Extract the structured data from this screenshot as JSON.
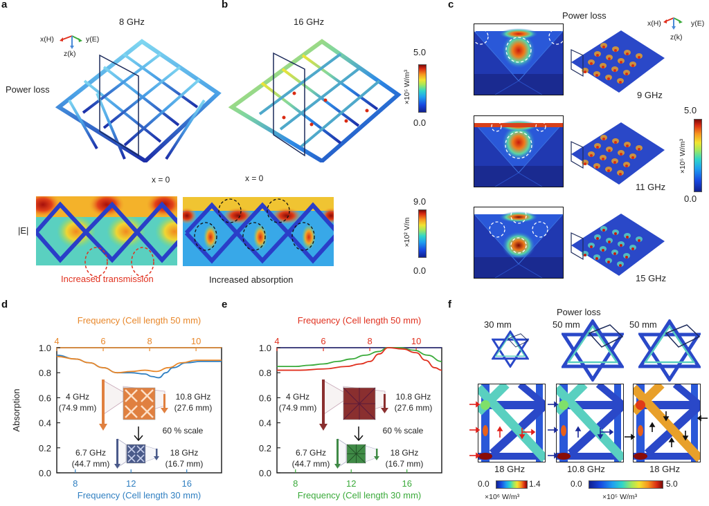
{
  "panels": {
    "a": {
      "letter": "a",
      "frequency": "8 GHz",
      "row_label": "Power loss",
      "axes": {
        "x": "x(H)",
        "y": "y(E)",
        "z": "z(k)"
      },
      "slice_title": "x = 0",
      "field_label": "|E|",
      "annotation": "Increased transmission",
      "annotation_color": "#e0301e"
    },
    "b": {
      "letter": "b",
      "frequency": "16 GHz",
      "slice_title": "x = 0",
      "annotation": "Increased absorption",
      "power_colorbar": {
        "max": "5.0",
        "min": "0.0",
        "unit": "×10⁵ W/m³"
      },
      "field_colorbar": {
        "max": "9.0",
        "min": "0.0",
        "unit": "×10² V/m"
      }
    },
    "c": {
      "letter": "c",
      "title": "Power loss",
      "axes": {
        "x": "x(H)",
        "y": "y(E)",
        "z": "z(k)"
      },
      "rows": [
        {
          "frequency": "9 GHz"
        },
        {
          "frequency": "11 GHz"
        },
        {
          "frequency": "15 GHz"
        }
      ],
      "colorbar": {
        "max": "5.0",
        "min": "0.0",
        "unit": "×10⁵ W/m³"
      }
    },
    "d": {
      "letter": "d"
    },
    "e": {
      "letter": "e"
    },
    "f": {
      "letter": "f",
      "title": "Power loss",
      "cells": [
        {
          "size": "30 mm",
          "frequency": "18 GHz",
          "arrow_color": "#e0201a"
        },
        {
          "size": "50 mm",
          "frequency": "10.8 GHz",
          "arrow_color": "#1a2a9a"
        },
        {
          "size": "50 mm",
          "frequency": "18 GHz",
          "arrow_color": "#111111"
        }
      ],
      "colorbar_left": {
        "min": "0.0",
        "max": "1.4",
        "unit": "×10⁶ W/m³"
      },
      "colorbar_right": {
        "min": "0.0",
        "max": "5.0",
        "unit": "×10⁵ W/m³"
      }
    }
  },
  "chart_data": [
    {
      "id": "d",
      "type": "line",
      "title": "",
      "ylabel": "Absorption",
      "ylim": [
        0.0,
        1.0
      ],
      "yticks": [
        "0.0",
        "0.2",
        "0.4",
        "0.6",
        "0.8",
        "1.0"
      ],
      "top_axis": {
        "label": "Frequency (Cell length 50 mm)",
        "color": "#e8872a",
        "range": [
          4,
          11.1
        ],
        "ticks": [
          "4",
          "6",
          "8",
          "10"
        ]
      },
      "bottom_axis": {
        "label": "Frequency (Cell length 30 mm)",
        "color": "#2f7fc1",
        "range": [
          6.67,
          18.5
        ],
        "ticks": [
          "8",
          "12",
          "16"
        ]
      },
      "series": [
        {
          "name": "Cell length 30 mm",
          "color": "#2f7fc1",
          "axis": "bottom",
          "x": [
            6.67,
            8,
            9,
            10,
            11,
            12,
            13,
            13.5,
            14,
            14.5,
            15,
            16,
            17,
            18.5
          ],
          "y": [
            0.94,
            0.91,
            0.88,
            0.84,
            0.8,
            0.8,
            0.79,
            0.77,
            0.76,
            0.8,
            0.84,
            0.88,
            0.89,
            0.89
          ]
        },
        {
          "name": "Cell length 50 mm",
          "color": "#e8872a",
          "axis": "top",
          "x": [
            4,
            4.8,
            5.4,
            6.0,
            6.6,
            7.2,
            7.8,
            8.3,
            8.8,
            9.4,
            10.0,
            10.6,
            11.1
          ],
          "y": [
            0.93,
            0.91,
            0.88,
            0.84,
            0.8,
            0.81,
            0.82,
            0.81,
            0.84,
            0.88,
            0.9,
            0.9,
            0.9
          ]
        }
      ],
      "inset": {
        "large_color": "#e08040",
        "small_color": "#4a5a8a",
        "left_top": "4 GHz",
        "left_bottom": "(74.9 mm)",
        "right_top": "10.8 GHz",
        "right_bottom": "(27.6 mm)",
        "scale": "60 % scale",
        "small_left_top": "6.7 GHz",
        "small_left_bottom": "(44.7 mm)",
        "small_right_top": "18 GHz",
        "small_right_bottom": "(16.7 mm)"
      }
    },
    {
      "id": "e",
      "type": "line",
      "title": "",
      "ylabel": "",
      "ylim": [
        0.0,
        1.0
      ],
      "yticks": [
        "0.0",
        "0.2",
        "0.4",
        "0.6",
        "0.8",
        "1.0"
      ],
      "top_axis": {
        "label": "Frequency (Cell length 50 mm)",
        "color": "#e0301e",
        "range": [
          4,
          11.1
        ],
        "ticks": [
          "4",
          "6",
          "8",
          "10"
        ]
      },
      "bottom_axis": {
        "label": "Frequency (Cell length 30 mm)",
        "color": "#3aaa3a",
        "range": [
          6.67,
          18.5
        ],
        "ticks": [
          "8",
          "12",
          "16"
        ]
      },
      "series": [
        {
          "name": "Cell length 30 mm",
          "color": "#3aaa3a",
          "axis": "bottom",
          "x": [
            6.67,
            8,
            9,
            10,
            11,
            12,
            13,
            14,
            14.6,
            15.5,
            16.5,
            17.5,
            18.5
          ],
          "y": [
            0.85,
            0.85,
            0.86,
            0.87,
            0.89,
            0.91,
            0.94,
            0.97,
            1.0,
            1.0,
            0.98,
            0.94,
            0.89
          ]
        },
        {
          "name": "Cell length 50 mm",
          "color": "#e0301e",
          "axis": "top",
          "x": [
            4,
            5,
            6,
            7,
            7.6,
            8.0,
            8.4,
            8.8,
            9.4,
            10.0,
            10.4,
            10.8,
            11.1
          ],
          "y": [
            0.82,
            0.82,
            0.83,
            0.85,
            0.87,
            0.89,
            0.95,
            1.0,
            0.99,
            0.96,
            0.9,
            0.84,
            0.82
          ]
        }
      ],
      "inset": {
        "large_color": "#8a2f2f",
        "small_color": "#3f8a46",
        "left_top": "4 GHz",
        "left_bottom": "(74.9 mm)",
        "right_top": "10.8 GHz",
        "right_bottom": "(27.6 mm)",
        "scale": "60 % scale",
        "small_left_top": "6.7 GHz",
        "small_left_bottom": "(44.7 mm)",
        "small_right_top": "18 GHz",
        "small_right_bottom": "(16.7 mm)"
      }
    }
  ]
}
